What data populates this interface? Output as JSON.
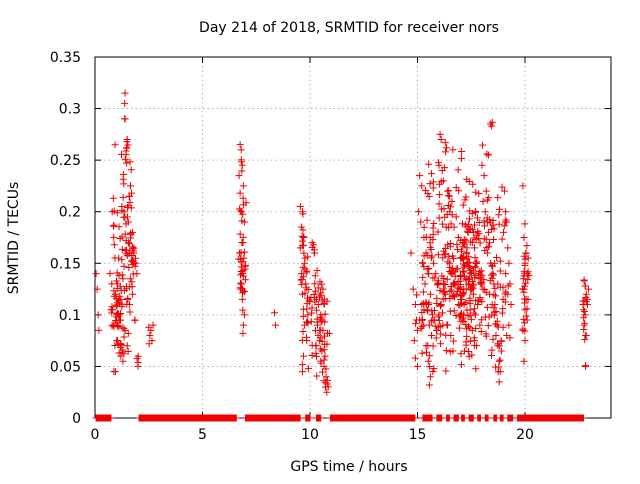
{
  "chart_data": {
    "type": "scatter",
    "title": "Day 214 of 2018, SRMTID for receiver nors",
    "xlabel": "GPS time / hours",
    "ylabel": "SRMTID / TECUs",
    "xlim": [
      0,
      24
    ],
    "ylim": [
      0,
      0.35
    ],
    "x_ticks": [
      0,
      5,
      10,
      15,
      20
    ],
    "x_tick_labels": [
      "0",
      "5",
      "10",
      "15",
      "20"
    ],
    "y_ticks": [
      0,
      0.05,
      0.1,
      0.15,
      0.2,
      0.25,
      0.3,
      0.35
    ],
    "y_tick_labels": [
      "0",
      "0.05",
      "0.1",
      "0.15",
      "0.2",
      "0.25",
      "0.3",
      "0.35"
    ],
    "grid": true,
    "marker": "+",
    "color": "#ee0000",
    "zero_segments": [
      [
        0.05,
        0.75
      ],
      [
        2.05,
        6.6
      ],
      [
        7.0,
        9.55
      ],
      [
        9.8,
        10.0
      ],
      [
        10.3,
        10.5
      ],
      [
        10.95,
        14.9
      ],
      [
        15.25,
        15.7
      ],
      [
        15.9,
        16.15
      ],
      [
        16.35,
        16.5
      ],
      [
        16.7,
        16.9
      ],
      [
        17.05,
        17.2
      ],
      [
        17.4,
        17.6
      ],
      [
        17.8,
        17.95
      ],
      [
        18.15,
        18.3
      ],
      [
        18.55,
        18.7
      ],
      [
        18.85,
        19.0
      ],
      [
        19.2,
        19.45
      ],
      [
        19.65,
        22.75
      ]
    ],
    "zero_step_hours": 0.033,
    "clusters": [
      {
        "x_min": 0.0,
        "x_max": 0.25,
        "points": [
          [
            0.05,
            0.14
          ],
          [
            0.1,
            0.125
          ],
          [
            0.15,
            0.1
          ],
          [
            0.18,
            0.085
          ]
        ]
      },
      {
        "x_min": 0.65,
        "x_max": 2.1,
        "points": [
          [
            1.4,
            0.315
          ],
          [
            1.38,
            0.305
          ],
          [
            1.5,
            0.27
          ],
          [
            1.48,
            0.262
          ],
          [
            1.65,
            0.225
          ],
          [
            1.7,
            0.218
          ],
          [
            1.6,
            0.215
          ],
          [
            0.85,
            0.213
          ],
          [
            1.25,
            0.205
          ],
          [
            1.35,
            0.2
          ],
          [
            0.8,
            0.2
          ],
          [
            1.55,
            0.19
          ],
          [
            1.75,
            0.18
          ],
          [
            1.45,
            0.172
          ],
          [
            0.9,
            0.168
          ],
          [
            1.8,
            0.16
          ],
          [
            1.1,
            0.155
          ],
          [
            1.7,
            0.152
          ],
          [
            1.9,
            0.15
          ],
          [
            0.7,
            0.14
          ],
          [
            1.3,
            0.135
          ],
          [
            1.05,
            0.13
          ],
          [
            1.95,
            0.14
          ],
          [
            0.95,
            0.12
          ],
          [
            1.2,
            0.115
          ],
          [
            1.6,
            0.11
          ],
          [
            0.75,
            0.105
          ],
          [
            1.0,
            0.1
          ],
          [
            1.15,
            0.095
          ],
          [
            0.85,
            0.09
          ],
          [
            1.4,
            0.085
          ],
          [
            1.05,
            0.075
          ],
          [
            1.5,
            0.07
          ],
          [
            1.2,
            0.06
          ],
          [
            1.3,
            0.055
          ],
          [
            0.95,
            0.045
          ],
          [
            2.0,
            0.05
          ],
          [
            0.88,
            0.045
          ],
          [
            1.75,
            0.12
          ],
          [
            1.85,
            0.095
          ],
          [
            1.55,
            0.082
          ],
          [
            1.25,
            0.108
          ],
          [
            0.78,
            0.13
          ],
          [
            1.62,
            0.16
          ],
          [
            1.35,
            0.147
          ],
          [
            1.15,
            0.118
          ]
        ],
        "count": 170
      },
      {
        "x_min": 2.45,
        "x_max": 2.75,
        "points": [
          [
            2.5,
            0.088
          ],
          [
            2.6,
            0.085
          ],
          [
            2.55,
            0.08
          ],
          [
            2.65,
            0.075
          ],
          [
            2.7,
            0.09
          ],
          [
            2.52,
            0.072
          ]
        ]
      },
      {
        "x_min": 6.6,
        "x_max": 7.05,
        "points": [
          [
            6.75,
            0.265
          ],
          [
            6.8,
            0.26
          ],
          [
            6.85,
            0.245
          ],
          [
            6.7,
            0.235
          ],
          [
            6.9,
            0.225
          ],
          [
            6.75,
            0.218
          ],
          [
            6.82,
            0.2
          ],
          [
            6.95,
            0.19
          ],
          [
            6.88,
            0.17
          ],
          [
            6.72,
            0.16
          ],
          [
            6.92,
            0.155
          ],
          [
            7.0,
            0.148
          ],
          [
            6.8,
            0.142
          ],
          [
            6.78,
            0.125
          ],
          [
            6.85,
            0.115
          ],
          [
            6.95,
            0.1
          ],
          [
            6.9,
            0.09
          ],
          [
            6.88,
            0.082
          ]
        ],
        "count": 55
      },
      {
        "x_min": 8.3,
        "x_max": 8.45,
        "points": [
          [
            8.35,
            0.102
          ],
          [
            8.4,
            0.09
          ]
        ]
      },
      {
        "x_min": 9.5,
        "x_max": 11.05,
        "points": [
          [
            9.55,
            0.205
          ],
          [
            9.65,
            0.2
          ],
          [
            9.6,
            0.185
          ],
          [
            9.7,
            0.175
          ],
          [
            9.55,
            0.165
          ],
          [
            9.75,
            0.15
          ],
          [
            9.6,
            0.14
          ],
          [
            9.8,
            0.13
          ],
          [
            9.65,
            0.12
          ],
          [
            9.9,
            0.1
          ],
          [
            9.75,
            0.09
          ],
          [
            9.85,
            0.075
          ],
          [
            9.7,
            0.06
          ],
          [
            9.65,
            0.045
          ],
          [
            10.1,
            0.17
          ],
          [
            10.2,
            0.16
          ],
          [
            10.3,
            0.115
          ],
          [
            10.4,
            0.11
          ],
          [
            10.5,
            0.1
          ],
          [
            10.35,
            0.09
          ],
          [
            10.6,
            0.085
          ],
          [
            10.45,
            0.075
          ],
          [
            10.55,
            0.065
          ],
          [
            10.7,
            0.06
          ],
          [
            10.65,
            0.05
          ],
          [
            10.75,
            0.04
          ],
          [
            10.8,
            0.033
          ],
          [
            10.78,
            0.025
          ],
          [
            10.9,
            0.082
          ],
          [
            10.6,
            0.125
          ]
        ],
        "count": 130
      },
      {
        "x_min": 14.6,
        "x_max": 19.95,
        "points": [
          [
            15.1,
            0.235
          ],
          [
            15.2,
            0.225
          ],
          [
            15.05,
            0.2
          ],
          [
            15.15,
            0.19
          ],
          [
            15.3,
            0.175
          ],
          [
            15.4,
            0.16
          ],
          [
            15.25,
            0.15
          ],
          [
            15.5,
            0.14
          ],
          [
            15.35,
            0.13
          ],
          [
            15.6,
            0.12
          ],
          [
            15.45,
            0.105
          ],
          [
            15.55,
            0.09
          ],
          [
            15.65,
            0.08
          ],
          [
            15.4,
            0.07
          ],
          [
            15.5,
            0.055
          ],
          [
            15.6,
            0.04
          ],
          [
            15.55,
            0.032
          ],
          [
            16.05,
            0.275
          ],
          [
            16.1,
            0.27
          ],
          [
            16.35,
            0.262
          ],
          [
            16.3,
            0.258
          ],
          [
            16.0,
            0.245
          ],
          [
            16.15,
            0.24
          ],
          [
            16.2,
            0.23
          ],
          [
            16.4,
            0.22
          ],
          [
            16.6,
            0.21
          ],
          [
            16.5,
            0.2
          ],
          [
            16.8,
            0.195
          ],
          [
            16.7,
            0.185
          ],
          [
            16.9,
            0.175
          ],
          [
            17.1,
            0.17
          ],
          [
            17.3,
            0.165
          ],
          [
            17.0,
            0.155
          ],
          [
            17.2,
            0.148
          ],
          [
            17.5,
            0.14
          ],
          [
            17.4,
            0.13
          ],
          [
            17.6,
            0.12
          ],
          [
            17.8,
            0.11
          ],
          [
            17.7,
            0.1
          ],
          [
            17.9,
            0.09
          ],
          [
            17.55,
            0.085
          ],
          [
            17.65,
            0.075
          ],
          [
            17.75,
            0.07
          ],
          [
            18.0,
            0.245
          ],
          [
            18.1,
            0.235
          ],
          [
            18.2,
            0.22
          ],
          [
            18.05,
            0.21
          ],
          [
            18.15,
            0.2
          ],
          [
            18.25,
            0.19
          ],
          [
            18.3,
            0.18
          ],
          [
            18.35,
            0.17
          ],
          [
            18.25,
            0.16
          ],
          [
            18.4,
            0.15
          ],
          [
            18.5,
            0.14
          ],
          [
            18.55,
            0.13
          ],
          [
            18.35,
            0.12
          ],
          [
            18.6,
            0.11
          ],
          [
            18.45,
            0.1
          ],
          [
            18.7,
            0.09
          ],
          [
            18.65,
            0.08
          ],
          [
            18.75,
            0.07
          ],
          [
            18.8,
            0.055
          ],
          [
            18.85,
            0.045
          ],
          [
            18.8,
            0.035
          ],
          [
            18.9,
            0.065
          ],
          [
            18.4,
            0.285
          ],
          [
            18.45,
            0.283
          ],
          [
            18.3,
            0.255
          ],
          [
            19.05,
            0.22
          ],
          [
            19.1,
            0.2
          ],
          [
            19.15,
            0.19
          ],
          [
            19.0,
            0.18
          ],
          [
            19.2,
            0.165
          ],
          [
            19.25,
            0.15
          ],
          [
            19.1,
            0.14
          ],
          [
            19.3,
            0.13
          ],
          [
            19.2,
            0.12
          ],
          [
            19.35,
            0.11
          ],
          [
            19.25,
            0.09
          ],
          [
            19.15,
            0.08
          ],
          [
            14.7,
            0.16
          ],
          [
            14.8,
            0.125
          ],
          [
            14.9,
            0.11
          ],
          [
            14.95,
            0.095
          ],
          [
            14.85,
            0.075
          ],
          [
            14.9,
            0.058
          ],
          [
            15.0,
            0.05
          ],
          [
            16.5,
            0.15
          ],
          [
            16.6,
            0.14
          ],
          [
            16.7,
            0.13
          ],
          [
            16.8,
            0.12
          ],
          [
            16.9,
            0.11
          ],
          [
            17.0,
            0.1
          ],
          [
            17.1,
            0.095
          ],
          [
            16.2,
            0.13
          ],
          [
            16.3,
            0.12
          ],
          [
            16.1,
            0.11
          ],
          [
            16.0,
            0.1
          ],
          [
            16.4,
            0.09
          ],
          [
            16.55,
            0.08
          ],
          [
            16.65,
            0.065
          ],
          [
            17.35,
            0.15
          ],
          [
            17.45,
            0.145
          ],
          [
            17.25,
            0.135
          ],
          [
            17.15,
            0.125
          ],
          [
            17.05,
            0.115
          ],
          [
            15.75,
            0.15
          ],
          [
            15.85,
            0.14
          ],
          [
            15.95,
            0.13
          ],
          [
            15.7,
            0.1
          ],
          [
            15.8,
            0.095
          ],
          [
            15.9,
            0.085
          ],
          [
            15.2,
            0.11
          ],
          [
            15.3,
            0.105
          ],
          [
            15.1,
            0.095
          ],
          [
            15.0,
            0.085
          ],
          [
            17.95,
            0.13
          ],
          [
            18.05,
            0.125
          ],
          [
            17.85,
            0.14
          ],
          [
            17.75,
            0.15
          ],
          [
            17.65,
            0.165
          ],
          [
            17.6,
            0.18
          ]
        ],
        "count": 520
      },
      {
        "x_min": 19.8,
        "x_max": 20.25,
        "points": [
          [
            19.9,
            0.225
          ],
          [
            19.95,
            0.175
          ],
          [
            20.05,
            0.16
          ],
          [
            20.0,
            0.15
          ],
          [
            20.1,
            0.14
          ],
          [
            19.95,
            0.125
          ],
          [
            20.05,
            0.115
          ],
          [
            20.0,
            0.105
          ],
          [
            20.1,
            0.095
          ],
          [
            19.9,
            0.085
          ],
          [
            20.0,
            0.075
          ],
          [
            19.95,
            0.055
          ],
          [
            20.15,
            0.155
          ],
          [
            19.92,
            0.135
          ]
        ],
        "count": 40
      },
      {
        "x_min": 22.6,
        "x_max": 23.0,
        "points": [
          [
            22.75,
            0.133
          ],
          [
            22.8,
            0.128
          ],
          [
            22.85,
            0.12
          ],
          [
            22.9,
            0.115
          ],
          [
            22.7,
            0.11
          ],
          [
            22.8,
            0.1
          ],
          [
            22.75,
            0.09
          ],
          [
            22.85,
            0.08
          ],
          [
            22.78,
            0.076
          ],
          [
            22.82,
            0.05
          ],
          [
            22.95,
            0.125
          ],
          [
            22.72,
            0.105
          ]
        ],
        "count": 25
      }
    ]
  }
}
